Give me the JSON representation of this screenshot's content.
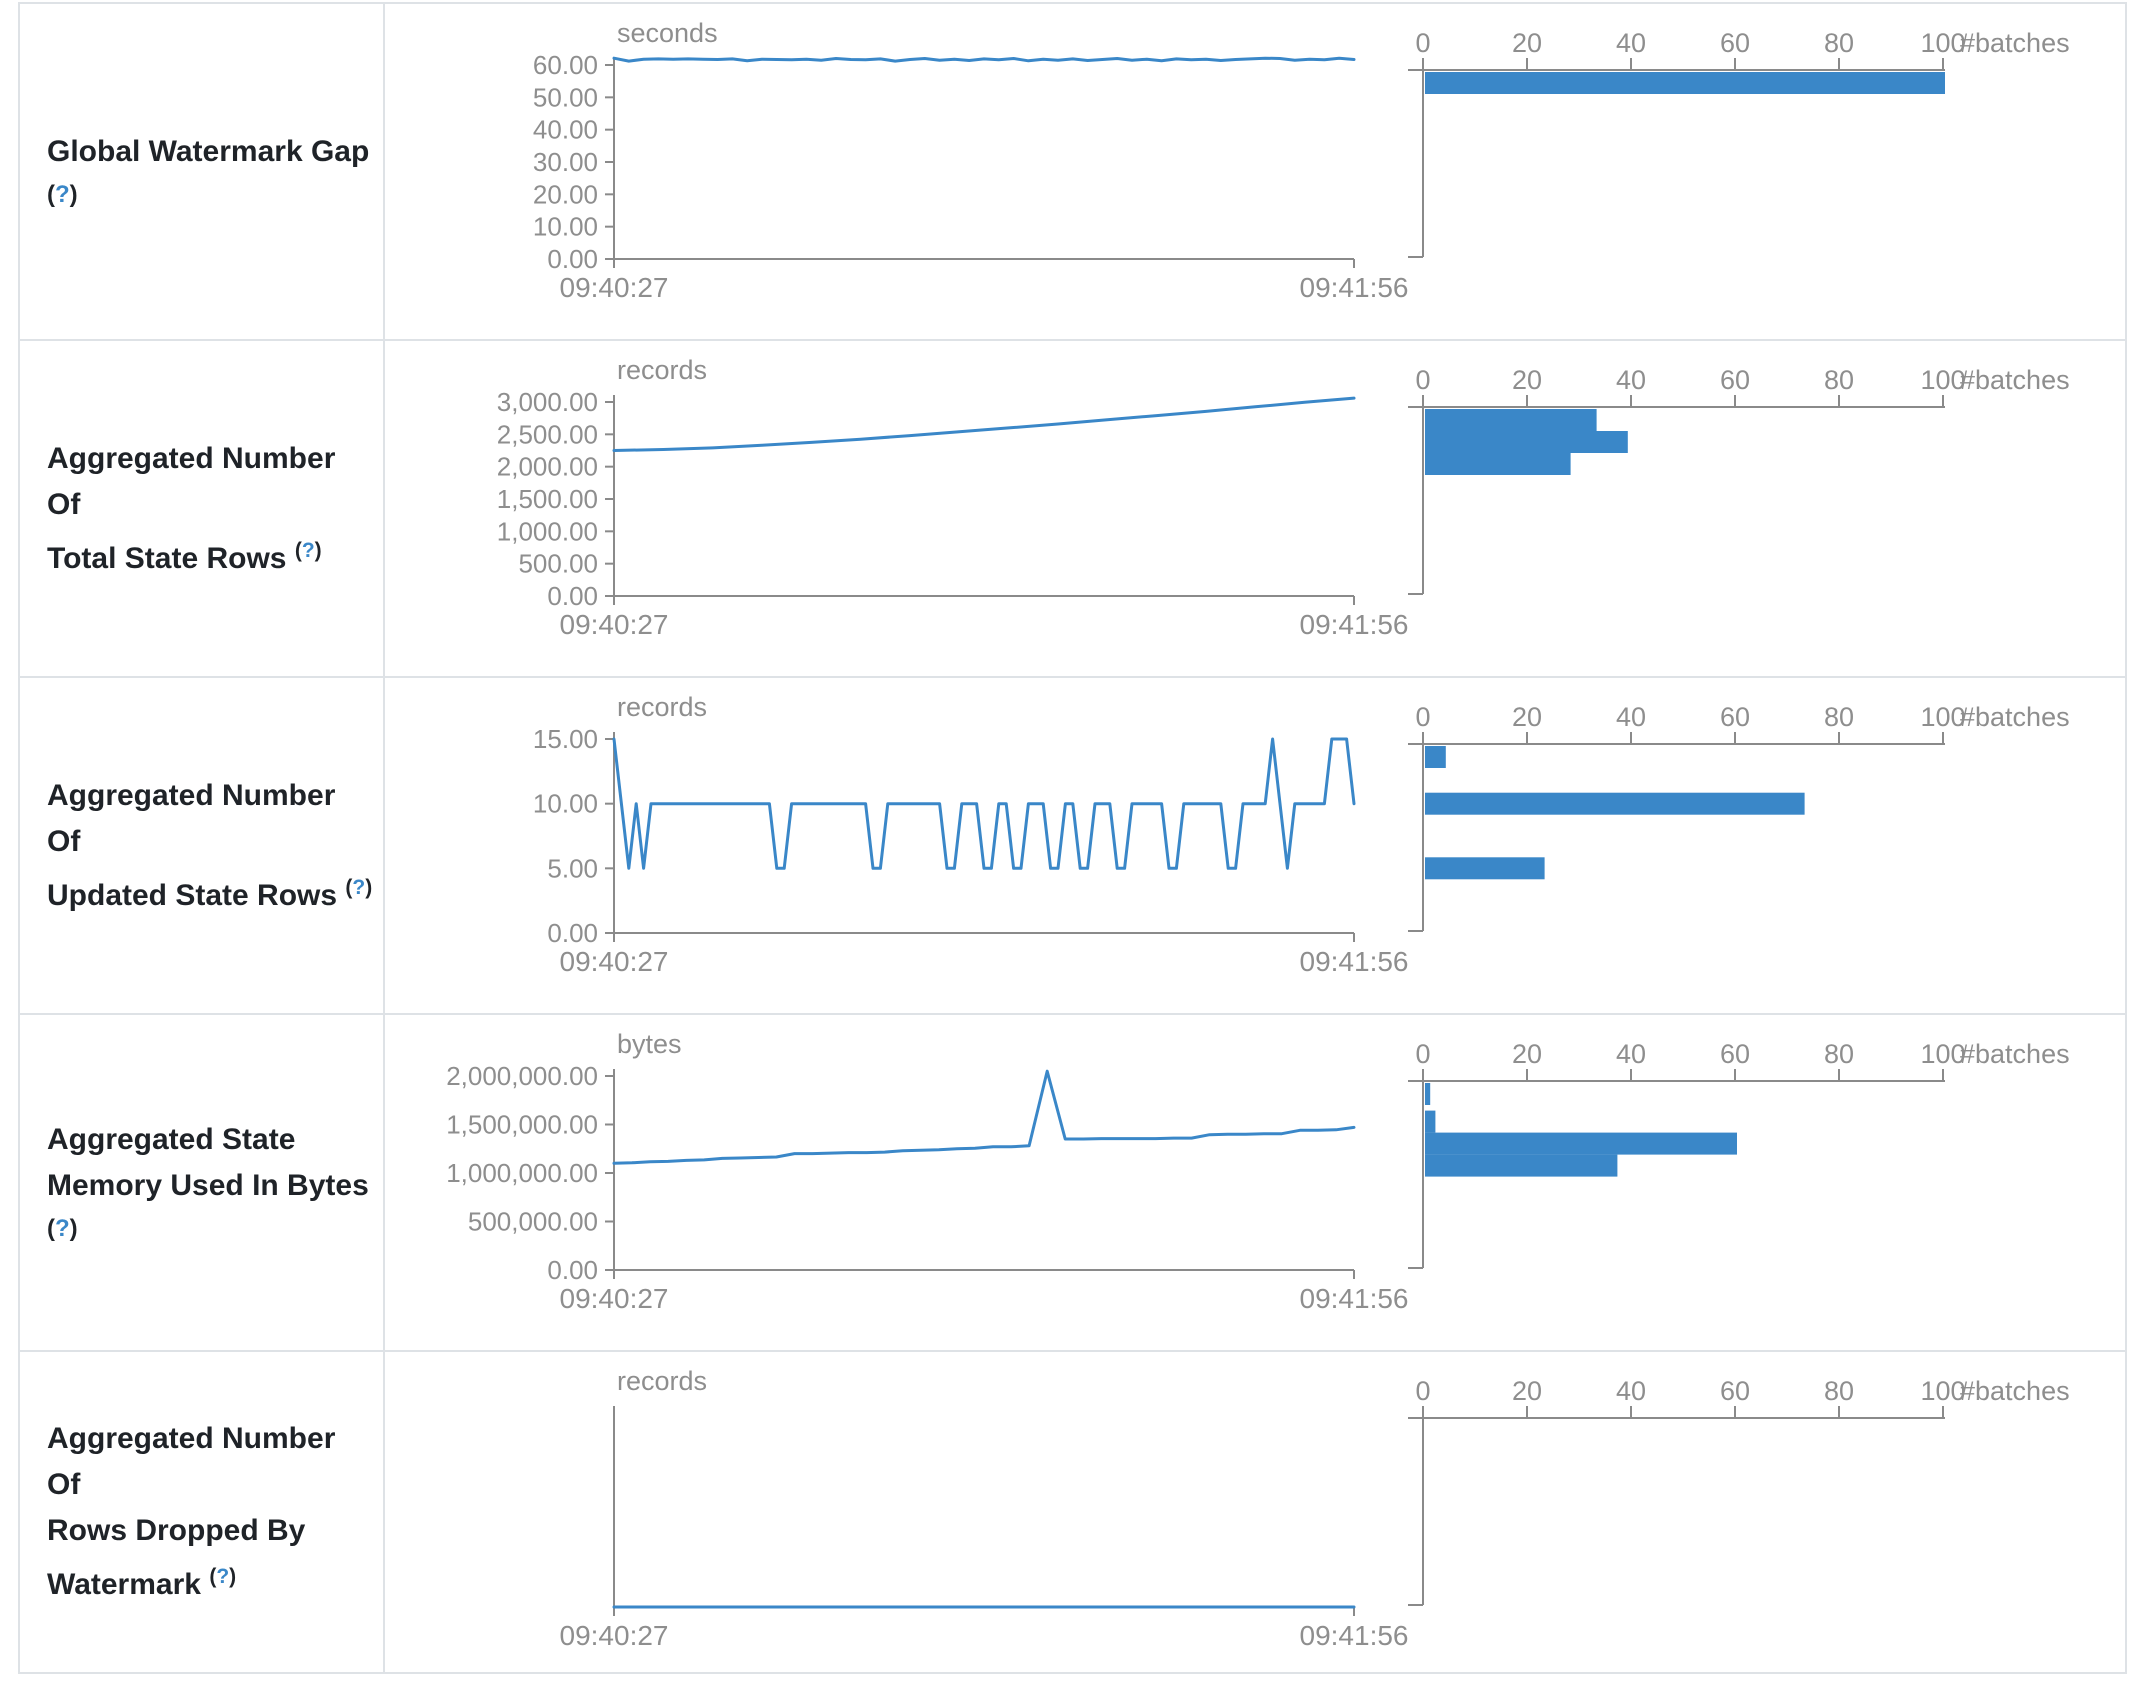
{
  "palette": {
    "accent_blue": "#3a87c8",
    "axis_grey": "#8e8e8e",
    "border_grey": "#dee2e6",
    "label_dark": "#1f2328"
  },
  "table": {
    "x_start_label": "09:40:27",
    "x_end_label": "09:41:56",
    "help_marker_open": "(",
    "help_marker_q": "?",
    "help_marker_close": ")",
    "hist_axis_label": "#batches",
    "hist_ticks": [
      0,
      20,
      40,
      60,
      80,
      100
    ]
  },
  "chart_data": [
    {
      "row_label_lines": [
        "Global Watermark Gap"
      ],
      "help_placement": "newline",
      "timeline": {
        "type": "line",
        "unit": "seconds",
        "y_tick_labels": [
          "60.00",
          "50.00",
          "40.00",
          "30.00",
          "20.00",
          "10.00",
          "0.00"
        ],
        "y_top_value": 60,
        "x_range": [
          "09:40:27",
          "09:41:56"
        ],
        "values": [
          62.1,
          61.2,
          61.8,
          61.9,
          61.8,
          61.9,
          61.8,
          61.7,
          61.9,
          61.3,
          61.8,
          61.7,
          61.6,
          61.8,
          61.5,
          62.0,
          61.7,
          61.6,
          61.9,
          61.2,
          61.7,
          62.0,
          61.5,
          61.8,
          61.4,
          61.9,
          61.6,
          62.0,
          61.3,
          61.8,
          61.5,
          61.9,
          61.4,
          61.7,
          62.0,
          61.5,
          61.8,
          61.3,
          61.9,
          61.6,
          61.8,
          61.4,
          61.7,
          61.9,
          62.1,
          62.0,
          61.5,
          61.8,
          61.6,
          62.1,
          61.7
        ]
      },
      "histogram": {
        "type": "bar",
        "xlabel": "#batches",
        "xlim": [
          0,
          100
        ],
        "bins": [
          {
            "value": 61,
            "count": 100
          }
        ]
      }
    },
    {
      "row_label_lines": [
        "Aggregated Number Of",
        "Total State Rows"
      ],
      "help_placement": "inline_sup",
      "timeline": {
        "type": "line",
        "unit": "records",
        "y_tick_labels": [
          "3,000.00",
          "2,500.00",
          "2,000.00",
          "1,500.00",
          "1,000.00",
          "500.00",
          "0.00"
        ],
        "y_top_value": 3000,
        "x_range": [
          "09:40:27",
          "09:41:56"
        ],
        "values": [
          2250,
          2265,
          2290,
          2330,
          2375,
          2425,
          2480,
          2540,
          2600,
          2660,
          2725,
          2790,
          2855,
          2925,
          2995,
          3060
        ]
      },
      "histogram": {
        "type": "bar",
        "xlabel": "#batches",
        "xlim": [
          0,
          100
        ],
        "bins": [
          {
            "value": 2925,
            "count": 33
          },
          {
            "value": 2655,
            "count": 39
          },
          {
            "value": 2385,
            "count": 28
          }
        ]
      }
    },
    {
      "row_label_lines": [
        "Aggregated Number Of",
        "Updated State Rows"
      ],
      "help_placement": "inline_sup",
      "timeline": {
        "type": "line",
        "unit": "records",
        "y_tick_labels": [
          "15.00",
          "10.00",
          "5.00",
          "0.00"
        ],
        "y_top_value": 15,
        "x_range": [
          "09:40:27",
          "09:41:56"
        ],
        "values": [
          15,
          10,
          5,
          10,
          5,
          10,
          10,
          10,
          10,
          10,
          10,
          10,
          10,
          10,
          10,
          10,
          10,
          10,
          10,
          10,
          10,
          10,
          5,
          5,
          10,
          10,
          10,
          10,
          10,
          10,
          10,
          10,
          10,
          10,
          10,
          5,
          5,
          10,
          10,
          10,
          10,
          10,
          10,
          10,
          10,
          5,
          5,
          10,
          10,
          10,
          5,
          5,
          10,
          10,
          5,
          5,
          10,
          10,
          10,
          5,
          5,
          10,
          10,
          5,
          5,
          10,
          10,
          10,
          5,
          5,
          10,
          10,
          10,
          10,
          10,
          5,
          5,
          10,
          10,
          10,
          10,
          10,
          10,
          5,
          5,
          10,
          10,
          10,
          10,
          15,
          10,
          5,
          10,
          10,
          10,
          10,
          10,
          15,
          15,
          15,
          10
        ]
      },
      "histogram": {
        "type": "bar",
        "xlabel": "#batches",
        "xlim": [
          0,
          100
        ],
        "bins": [
          {
            "value": 15,
            "count": 4
          },
          {
            "value": 10,
            "count": 73
          },
          {
            "value": 5,
            "count": 23
          }
        ]
      }
    },
    {
      "row_label_lines": [
        "Aggregated State",
        "Memory Used In Bytes"
      ],
      "help_placement": "newline",
      "timeline": {
        "type": "line",
        "unit": "bytes",
        "y_tick_labels": [
          "2,000,000.00",
          "1,500,000.00",
          "1,000,000.00",
          "500,000.00",
          "0.00"
        ],
        "y_top_value": 2000000,
        "x_range": [
          "09:40:27",
          "09:41:56"
        ],
        "values": [
          1100000,
          1105000,
          1115000,
          1120000,
          1130000,
          1135000,
          1150000,
          1155000,
          1160000,
          1165000,
          1200000,
          1200000,
          1205000,
          1210000,
          1210000,
          1215000,
          1230000,
          1235000,
          1240000,
          1250000,
          1255000,
          1270000,
          1270000,
          1280000,
          2050000,
          1350000,
          1350000,
          1355000,
          1355000,
          1355000,
          1355000,
          1360000,
          1360000,
          1395000,
          1400000,
          1400000,
          1405000,
          1405000,
          1440000,
          1440000,
          1445000,
          1470000
        ]
      },
      "histogram": {
        "type": "bar",
        "xlabel": "#batches",
        "xlim": [
          0,
          100
        ],
        "bins": [
          {
            "value": 2040000,
            "count": 1
          },
          {
            "value": 1530000,
            "count": 2
          },
          {
            "value": 1310000,
            "count": 60
          },
          {
            "value": 1090000,
            "count": 37
          }
        ]
      }
    },
    {
      "row_label_lines": [
        "Aggregated Number Of",
        "Rows Dropped By",
        "Watermark"
      ],
      "help_placement": "inline_sup",
      "timeline": {
        "type": "line",
        "unit": "records",
        "y_tick_labels": [],
        "y_top_value": null,
        "x_range": [
          "09:40:27",
          "09:41:56"
        ],
        "values": [
          0,
          0
        ]
      },
      "histogram": {
        "type": "bar",
        "xlabel": "#batches",
        "xlim": [
          0,
          100
        ],
        "bins": []
      }
    }
  ]
}
